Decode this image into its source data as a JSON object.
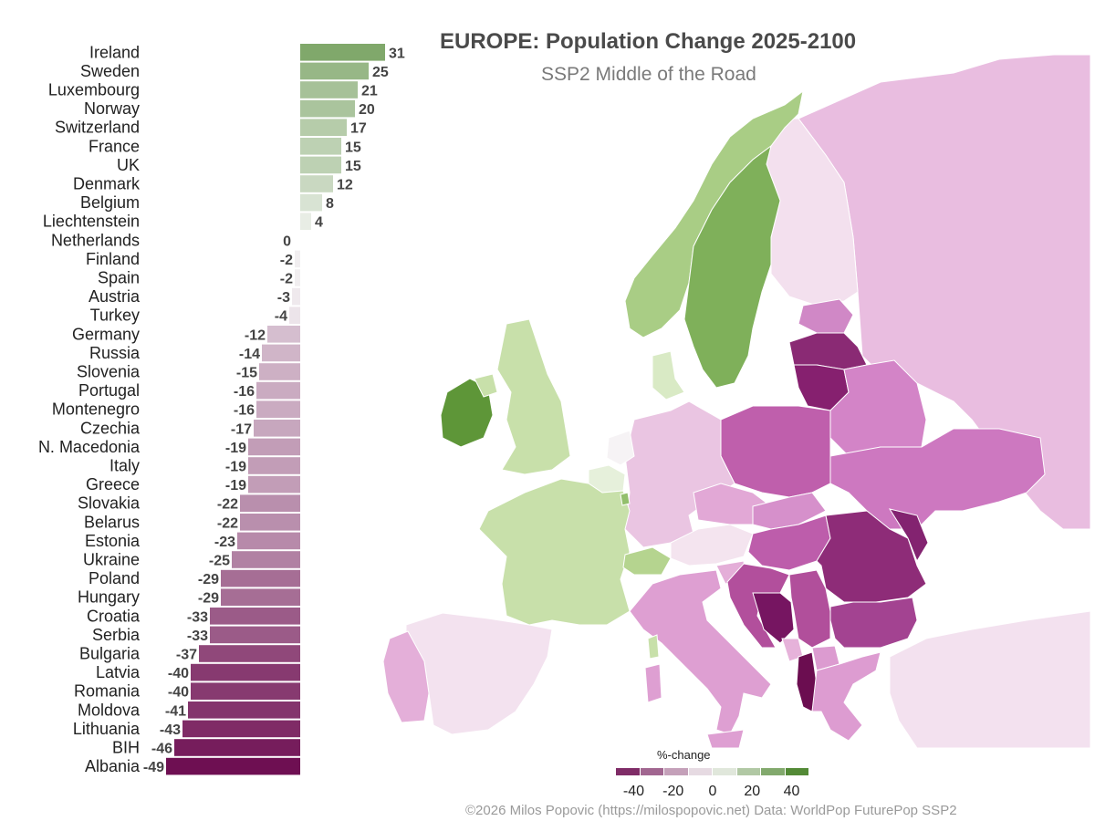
{
  "chart_data": [
    {
      "type": "bar",
      "orientation": "horizontal",
      "categories": [
        "Ireland",
        "Sweden",
        "Luxembourg",
        "Norway",
        "Switzerland",
        "France",
        "UK",
        "Denmark",
        "Belgium",
        "Liechtenstein",
        "Netherlands",
        "Finland",
        "Spain",
        "Austria",
        "Turkey",
        "Germany",
        "Russia",
        "Slovenia",
        "Portugal",
        "Montenegro",
        "Czechia",
        "N. Macedonia",
        "Italy",
        "Greece",
        "Slovakia",
        "Belarus",
        "Estonia",
        "Ukraine",
        "Poland",
        "Hungary",
        "Croatia",
        "Serbia",
        "Bulgaria",
        "Latvia",
        "Romania",
        "Moldova",
        "Lithuania",
        "BIH",
        "Albania"
      ],
      "values": [
        31,
        25,
        21,
        20,
        17,
        15,
        15,
        12,
        8,
        4,
        0,
        -2,
        -2,
        -3,
        -4,
        -12,
        -14,
        -15,
        -16,
        -16,
        -17,
        -19,
        -19,
        -19,
        -22,
        -22,
        -23,
        -25,
        -29,
        -29,
        -33,
        -33,
        -37,
        -40,
        -40,
        -41,
        -43,
        -46,
        -49
      ],
      "data_labels": [
        "31",
        "25",
        "21",
        "20",
        "17",
        "15",
        "15",
        "12",
        "8",
        "4",
        "0",
        "-2",
        "-2",
        "-3",
        "-4",
        "-12",
        "-14",
        "-15",
        "-16",
        "-16",
        "-17",
        "-19",
        "-19",
        "-19",
        "-22",
        "-22",
        "-23",
        "-25",
        "-29",
        "-29",
        "-33",
        "-33",
        "-37",
        "-40",
        "-40",
        "-41",
        "-43",
        "-46",
        "-49"
      ],
      "grid": false,
      "color_scale": {
        "domain": [
          -49,
          0,
          49
        ],
        "colors": [
          "#6e0f52",
          "#f7f7f7",
          "#3b7a1a"
        ]
      }
    },
    {
      "type": "choropleth",
      "title": "EUROPE: Population Change 2025-2100",
      "subtitle": "SSP2 Middle of the Road",
      "legend": {
        "title": "%-change",
        "ticks": [
          "-40",
          "-20",
          "0",
          "20",
          "40"
        ],
        "tick_values": [
          -40,
          -20,
          0,
          20,
          40
        ],
        "range": [
          -49,
          49
        ],
        "placement": "bottom-center"
      }
    }
  ],
  "footer": {
    "credit": "©2026 Milos Popovic (https://milospopovic.net) Data: WorldPop FuturePop SSP2"
  },
  "colors": {
    "text_dark": "#222222",
    "title": "#4a4a4a",
    "subtitle": "#7a7a7a",
    "credit": "#9a9a9a",
    "sea": "#ffffff"
  }
}
